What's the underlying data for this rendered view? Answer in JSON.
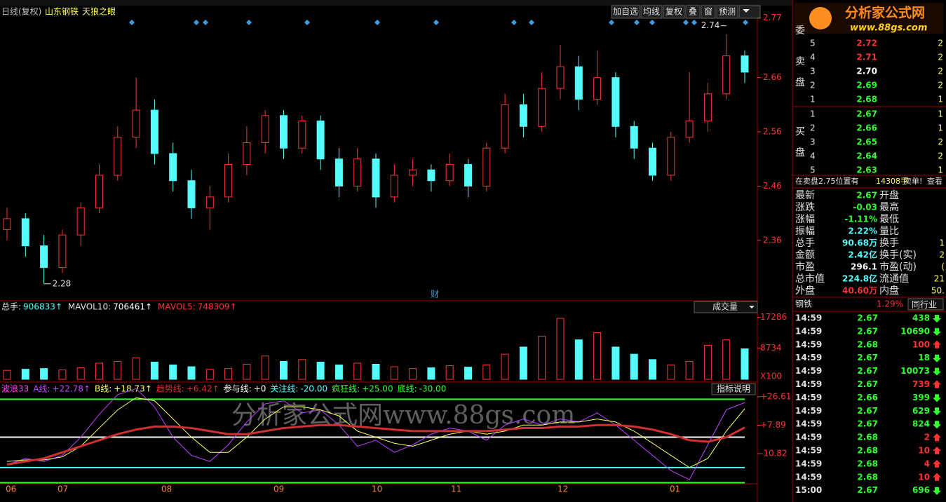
{
  "toolbar": {
    "title": "日线(复权)",
    "stock": "山东钢铁",
    "indicator_name": "天狼之眼",
    "buttons": [
      "加自选",
      "均线",
      "复权",
      "叠",
      "窗",
      "预测"
    ]
  },
  "logo": {
    "name": "分析家公式网",
    "url": "www.88gs.com"
  },
  "watermark": "分析家公式网www.88gs.com",
  "price_chart": {
    "type": "candlestick",
    "ylim": [
      2.25,
      2.79
    ],
    "yticks": [
      2.77,
      2.66,
      2.56,
      2.46,
      2.36
    ],
    "up_color": "#ff3232",
    "down_color": "#54fcfc",
    "candles": [
      [
        2.38,
        2.4,
        2.42,
        2.36
      ],
      [
        2.4,
        2.35,
        2.41,
        2.33
      ],
      [
        2.35,
        2.31,
        2.37,
        2.28
      ],
      [
        2.31,
        2.37,
        2.38,
        2.3
      ],
      [
        2.37,
        2.42,
        2.43,
        2.35
      ],
      [
        2.42,
        2.48,
        2.5,
        2.41
      ],
      [
        2.48,
        2.55,
        2.57,
        2.47
      ],
      [
        2.55,
        2.6,
        2.66,
        2.53
      ],
      [
        2.6,
        2.52,
        2.62,
        2.5
      ],
      [
        2.52,
        2.47,
        2.54,
        2.45
      ],
      [
        2.47,
        2.42,
        2.49,
        2.4
      ],
      [
        2.42,
        2.44,
        2.46,
        2.38
      ],
      [
        2.44,
        2.5,
        2.52,
        2.43
      ],
      [
        2.5,
        2.54,
        2.57,
        2.48
      ],
      [
        2.54,
        2.59,
        2.6,
        2.52
      ],
      [
        2.59,
        2.53,
        2.6,
        2.51
      ],
      [
        2.53,
        2.58,
        2.59,
        2.52
      ],
      [
        2.58,
        2.51,
        2.59,
        2.49
      ],
      [
        2.51,
        2.46,
        2.53,
        2.44
      ],
      [
        2.46,
        2.51,
        2.53,
        2.45
      ],
      [
        2.51,
        2.44,
        2.52,
        2.42
      ],
      [
        2.44,
        2.48,
        2.5,
        2.43
      ],
      [
        2.48,
        2.49,
        2.51,
        2.46
      ],
      [
        2.49,
        2.47,
        2.5,
        2.45
      ],
      [
        2.47,
        2.5,
        2.52,
        2.46
      ],
      [
        2.5,
        2.46,
        2.51,
        2.44
      ],
      [
        2.46,
        2.53,
        2.54,
        2.45
      ],
      [
        2.53,
        2.61,
        2.63,
        2.52
      ],
      [
        2.61,
        2.57,
        2.63,
        2.55
      ],
      [
        2.57,
        2.64,
        2.67,
        2.56
      ],
      [
        2.64,
        2.68,
        2.72,
        2.62
      ],
      [
        2.68,
        2.62,
        2.7,
        2.6
      ],
      [
        2.62,
        2.66,
        2.71,
        2.61
      ],
      [
        2.66,
        2.57,
        2.67,
        2.55
      ],
      [
        2.57,
        2.53,
        2.58,
        2.51
      ],
      [
        2.53,
        2.48,
        2.54,
        2.47
      ],
      [
        2.48,
        2.55,
        2.56,
        2.47
      ],
      [
        2.55,
        2.58,
        2.67,
        2.54
      ],
      [
        2.58,
        2.63,
        2.65,
        2.56
      ],
      [
        2.63,
        2.7,
        2.74,
        2.62
      ],
      [
        2.7,
        2.67,
        2.71,
        2.65
      ]
    ],
    "high": 2.74,
    "low": 2.28,
    "event_marker": "财"
  },
  "volume_chart": {
    "legend": [
      {
        "label": "总手:",
        "value": "906833↑",
        "color": "#54fcfc"
      },
      {
        "label": "MAVOL10:",
        "value": "706461↑",
        "color": "#ffffff"
      },
      {
        "label": "MAVOL5:",
        "value": "748309↑",
        "color": "#ff3232"
      }
    ],
    "selector": "成交量",
    "unit": "X100",
    "ylim": [
      0,
      21300
    ],
    "yticks": [
      17286,
      8734
    ],
    "values": [
      2500,
      2800,
      3000,
      2600,
      3200,
      4500,
      5000,
      6000,
      4800,
      4000,
      3500,
      2800,
      3000,
      4200,
      6500,
      5000,
      5500,
      4800,
      4000,
      4500,
      4200,
      3500,
      3000,
      3200,
      3800,
      3400,
      4000,
      7000,
      9000,
      12000,
      17000,
      11000,
      13000,
      9000,
      7000,
      5500,
      4000,
      5000,
      9500,
      11000,
      8500
    ]
  },
  "indicator_chart": {
    "name": "波浪33",
    "button": "指标说明",
    "ylim": [
      -30.7,
      34.9
    ],
    "yticks": [
      {
        "value": 26.61,
        "label": "+26.61"
      },
      {
        "value": 7.89,
        "label": "+7.89"
      },
      -10.82
    ],
    "series": [
      {
        "name": "A线:",
        "label": "+22.78↑",
        "color": "#c040ff",
        "values": [
          -18,
          -14,
          -16,
          -12,
          0,
          15,
          28,
          32,
          20,
          0,
          -12,
          -16,
          -5,
          10,
          22,
          24,
          16,
          18,
          8,
          -6,
          -2,
          -10,
          -5,
          2,
          6,
          4,
          -2,
          8,
          12,
          8,
          12,
          10,
          16,
          8,
          -2,
          -12,
          -22,
          -28,
          -5,
          18,
          22.78
        ]
      },
      {
        "name": "B线:",
        "label": "+18.73↑",
        "color": "#ffff60",
        "values": [
          -16,
          -15,
          -15,
          -13,
          -6,
          6,
          18,
          26,
          24,
          12,
          0,
          -10,
          -10,
          0,
          12,
          20,
          20,
          18,
          14,
          4,
          0,
          -4,
          -6,
          -2,
          2,
          4,
          2,
          4,
          8,
          8,
          10,
          10,
          12,
          10,
          4,
          -4,
          -12,
          -20,
          -14,
          4,
          18.73
        ]
      },
      {
        "name": "趋势线:",
        "label": "+6.42↑",
        "color": "#d03030",
        "values": [
          -18,
          -16,
          -14,
          -10,
          -6,
          -2,
          2,
          5,
          7,
          7,
          6,
          4,
          2,
          2,
          4,
          6,
          7,
          8,
          8,
          7,
          6,
          5,
          4,
          4,
          4,
          4,
          4,
          5,
          6,
          6,
          7,
          7,
          8,
          8,
          7,
          5,
          2,
          -2,
          -3,
          0,
          6.42
        ]
      }
    ],
    "levels": [
      {
        "name": "参与线:",
        "value": 0,
        "label": "+0",
        "color": "#ffffff"
      },
      {
        "name": "关注线:",
        "value": -20,
        "label": "-20.00",
        "color": "#54fcfc"
      },
      {
        "name": "疯狂线:",
        "value": 25,
        "label": "+25.00",
        "color": "#30ff30"
      },
      {
        "name": "底线:",
        "value": -30,
        "label": "-30.00",
        "color": "#30ff30"
      }
    ]
  },
  "x_axis": {
    "months": [
      "06",
      "07",
      "08",
      "09",
      "10",
      "11",
      "12",
      "01"
    ]
  },
  "order_book": {
    "header": "委",
    "sell_label": [
      "卖",
      "盘"
    ],
    "buy_label": [
      "买",
      "盘"
    ],
    "sell": [
      [
        "5",
        "2.72",
        "2",
        "#ff3232"
      ],
      [
        "4",
        "2.71",
        "2",
        "#ff3232"
      ],
      [
        "3",
        "2.70",
        "2",
        "#ffffff"
      ],
      [
        "2",
        "2.69",
        "2",
        "#30ff30"
      ],
      [
        "1",
        "2.68",
        "1",
        "#30ff30"
      ]
    ],
    "buy": [
      [
        "1",
        "2.67",
        "1",
        "#30ff30"
      ],
      [
        "2",
        "2.66",
        "1",
        "#30ff30"
      ],
      [
        "3",
        "2.65",
        "2",
        "#30ff30"
      ],
      [
        "4",
        "2.64",
        "2",
        "#30ff30"
      ],
      [
        "5",
        "2.63",
        "1",
        "#30ff30"
      ]
    ],
    "notice": [
      "在卖盘2.75位置有",
      "14308手",
      "卖单!",
      "查看"
    ]
  },
  "stats": [
    [
      "最新",
      "2.67",
      "开盘",
      "#30ff30"
    ],
    [
      "涨跌",
      "-0.03",
      "最高",
      "#30ff30"
    ],
    [
      "涨幅",
      "-1.11%",
      "最低",
      "#30ff30"
    ],
    [
      "振幅",
      "2.22%",
      "量比",
      "#54fcfc"
    ],
    [
      "总手",
      "90.68万",
      "换手",
      "#54fcfc"
    ],
    [
      "金额",
      "2.42亿",
      "换手(实)",
      "#54fcfc"
    ],
    [
      "市盈",
      "296.1",
      "市盈(动)",
      "#ffffff"
    ],
    [
      "总市值",
      "224.8亿",
      "流通值",
      "#54fcfc"
    ],
    [
      "外盘",
      "40.60万",
      "内盘",
      "#ff3232"
    ]
  ],
  "stats_right": [
    "",
    "",
    "",
    "",
    "1",
    "2",
    "(",
    "21",
    "50."
  ],
  "industry": {
    "name": "钢铁",
    "change": "1.29%",
    "button": "同行业"
  },
  "trades": [
    [
      "14:59",
      "2.67",
      "438",
      "down"
    ],
    [
      "14:59",
      "2.67",
      "10690",
      "down"
    ],
    [
      "14:59",
      "2.68",
      "100",
      "up"
    ],
    [
      "14:59",
      "2.67",
      "18",
      "down"
    ],
    [
      "14:59",
      "2.67",
      "10073",
      "down"
    ],
    [
      "14:59",
      "2.67",
      "739",
      "up"
    ],
    [
      "14:59",
      "2.66",
      "399",
      "down"
    ],
    [
      "14:59",
      "2.67",
      "629",
      "down"
    ],
    [
      "14:59",
      "2.67",
      "824",
      "down"
    ],
    [
      "14:59",
      "2.68",
      "2",
      "up"
    ],
    [
      "14:59",
      "2.68",
      "10",
      "up"
    ],
    [
      "14:59",
      "2.68",
      "4",
      "up"
    ],
    [
      "14:59",
      "2.68",
      "10",
      "up"
    ],
    [
      "15:00",
      "2.67",
      "696",
      "down"
    ]
  ]
}
